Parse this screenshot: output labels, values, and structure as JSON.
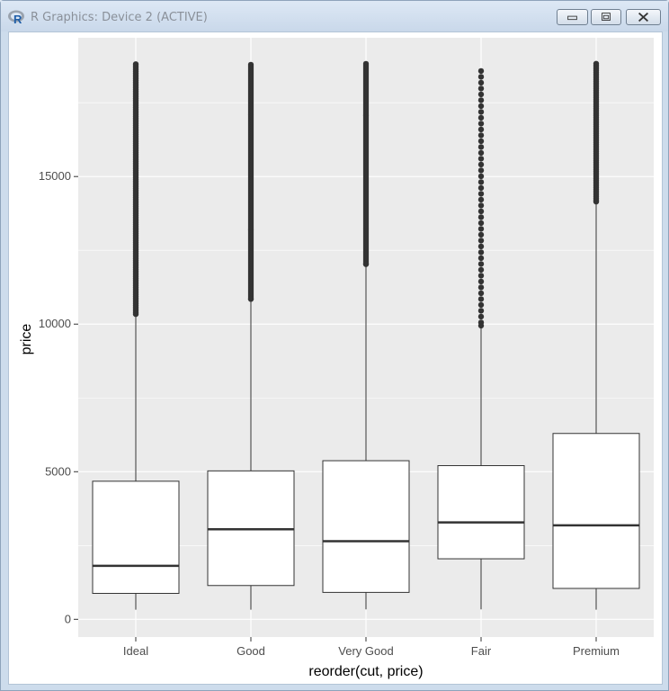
{
  "window": {
    "title": "R Graphics: Device 2 (ACTIVE)",
    "app_icon": "r-logo-icon",
    "buttons": {
      "minimize": "minimize-icon",
      "maximize": "maximize-icon",
      "close": "close-icon"
    }
  },
  "colors": {
    "panel_background": "#ebebeb",
    "grid": "#ffffff",
    "box_fill": "#ffffff",
    "box_line": "#333333",
    "outlier": "#333333"
  },
  "chart_data": {
    "type": "boxplot",
    "xlabel": "reorder(cut, price)",
    "ylabel": "price",
    "categories": [
      "Ideal",
      "Good",
      "Very Good",
      "Fair",
      "Premium"
    ],
    "ylim": [
      -600,
      19700
    ],
    "yticks": [
      0,
      5000,
      10000,
      15000
    ],
    "grid": true,
    "boxes": [
      {
        "category": "Ideal",
        "whisker_low": 326,
        "q1": 878,
        "median": 1810,
        "q3": 4678,
        "whisker_high": 10340,
        "outliers_range": [
          10340,
          18806
        ]
      },
      {
        "category": "Good",
        "whisker_low": 327,
        "q1": 1145,
        "median": 3050,
        "q3": 5028,
        "whisker_high": 10850,
        "outliers_range": [
          10850,
          18788
        ]
      },
      {
        "category": "Very Good",
        "whisker_low": 336,
        "q1": 912,
        "median": 2648,
        "q3": 5373,
        "whisker_high": 12030,
        "outliers_range": [
          12030,
          18818
        ]
      },
      {
        "category": "Fair",
        "whisker_low": 337,
        "q1": 2050,
        "median": 3282,
        "q3": 5206,
        "whisker_high": 9950,
        "outliers_range": [
          9950,
          18574
        ]
      },
      {
        "category": "Premium",
        "whisker_low": 326,
        "q1": 1046,
        "median": 3185,
        "q3": 6296,
        "whisker_high": 14150,
        "outliers_range": [
          14150,
          18823
        ]
      }
    ]
  }
}
